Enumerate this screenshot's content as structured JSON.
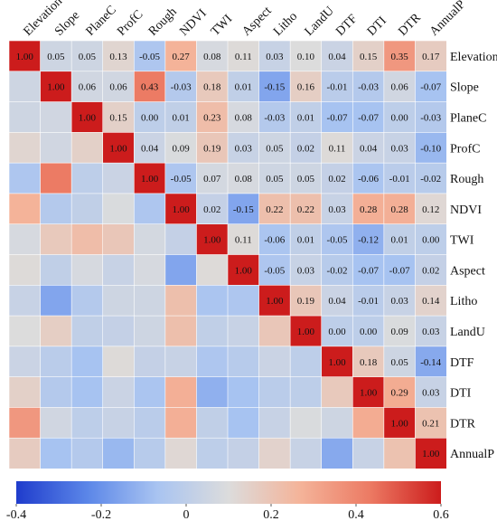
{
  "chart_data": {
    "type": "heatmap",
    "title": "",
    "variables": [
      "Elevation",
      "Slope",
      "PlaneC",
      "ProfC",
      "Rough",
      "NDVI",
      "TWI",
      "Aspect",
      "Litho",
      "LandU",
      "DTF",
      "DTI",
      "DTR",
      "AnnualP"
    ],
    "x_labels": [
      "Elevation",
      "Slope",
      "PlaneC",
      "ProfC",
      "Rough",
      "NDVI",
      "TWI",
      "Aspect",
      "Litho",
      "LandU",
      "DTF",
      "DTI",
      "DTR",
      "AnnualP"
    ],
    "y_labels": [
      "Elevation",
      "Slope",
      "PlaneC",
      "ProfC",
      "Rough",
      "NDVI",
      "TWI",
      "Aspect",
      "Litho",
      "LandU",
      "DTF",
      "DTI",
      "DTR",
      "AnnualP"
    ],
    "layout": "upper triangle shows printed values; lower triangle shows color only",
    "upper_triangle_values": [
      [
        1.0,
        0.05,
        0.05,
        0.13,
        -0.05,
        0.27,
        0.08,
        0.11,
        0.03,
        0.1,
        0.04,
        0.15,
        0.35,
        0.17
      ],
      [
        1.0,
        0.06,
        0.06,
        0.43,
        -0.03,
        0.18,
        0.01,
        -0.15,
        0.16,
        -0.01,
        -0.03,
        0.06,
        -0.07
      ],
      [
        1.0,
        0.15,
        0.0,
        0.01,
        0.23,
        0.08,
        -0.03,
        0.01,
        -0.07,
        -0.07,
        0.0,
        -0.03
      ],
      [
        1.0,
        0.04,
        0.09,
        0.19,
        0.03,
        0.05,
        0.02,
        0.11,
        0.04,
        0.03,
        -0.1
      ],
      [
        1.0,
        -0.05,
        0.07,
        0.08,
        0.05,
        0.05,
        0.02,
        -0.06,
        -0.01,
        -0.02
      ],
      [
        1.0,
        0.02,
        -0.15,
        0.22,
        0.22,
        0.03,
        0.28,
        0.28,
        0.12
      ],
      [
        1.0,
        0.11,
        -0.06,
        0.01,
        -0.05,
        -0.12,
        0.01,
        0.0
      ],
      [
        1.0,
        -0.05,
        0.03,
        -0.02,
        -0.07,
        -0.07,
        0.02
      ],
      [
        1.0,
        0.19,
        0.04,
        -0.01,
        0.03,
        0.14
      ],
      [
        1.0,
        0.0,
        0.0,
        0.09,
        0.03
      ],
      [
        1.0,
        0.18,
        0.05,
        -0.14
      ],
      [
        1.0,
        0.29,
        0.03
      ],
      [
        1.0,
        0.21
      ],
      [
        1.0
      ]
    ],
    "colorbar": {
      "range": [
        -0.4,
        0.6
      ],
      "ticks": [
        -0.4,
        -0.2,
        0,
        0.2,
        0.4,
        0.6
      ],
      "tick_labels": [
        "-0.4",
        "-0.2",
        "0",
        "0.2",
        "0.4",
        "0.6"
      ],
      "orientation": "horizontal",
      "position": "bottom",
      "colormap": [
        "#1f3ccc",
        "#5b86e8",
        "#a9c4f1",
        "#dcdcdc",
        "#f4b49a",
        "#ec7a63",
        "#cc1c1c"
      ]
    }
  }
}
